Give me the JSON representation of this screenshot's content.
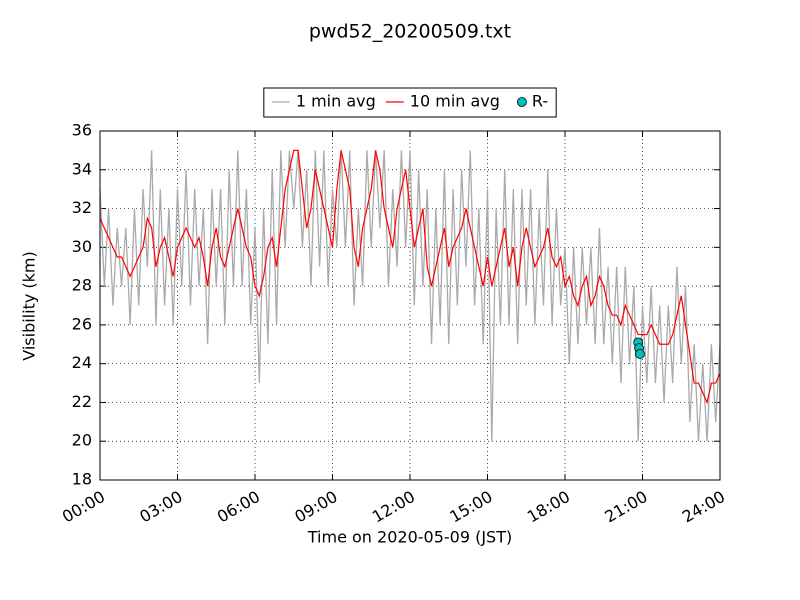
{
  "chart_data": {
    "type": "line",
    "title": "pwd52_20200509.txt",
    "xlabel": "Time on 2020-05-09 (JST)",
    "ylabel": "Visibility (km)",
    "xlim": [
      0,
      1440
    ],
    "xticks": [
      {
        "value": 0,
        "label": "00:00"
      },
      {
        "value": 180,
        "label": "03:00"
      },
      {
        "value": 360,
        "label": "06:00"
      },
      {
        "value": 540,
        "label": "09:00"
      },
      {
        "value": 720,
        "label": "12:00"
      },
      {
        "value": 900,
        "label": "15:00"
      },
      {
        "value": 1080,
        "label": "18:00"
      },
      {
        "value": 1260,
        "label": "21:00"
      },
      {
        "value": 1440,
        "label": "24:00"
      }
    ],
    "ylim": [
      18,
      36
    ],
    "yticks": [
      18,
      20,
      22,
      24,
      26,
      28,
      30,
      32,
      34,
      36
    ],
    "grid": true,
    "legend": "top",
    "x": [
      0,
      10,
      20,
      30,
      40,
      50,
      60,
      70,
      80,
      90,
      100,
      110,
      120,
      130,
      140,
      150,
      160,
      170,
      180,
      190,
      200,
      210,
      220,
      230,
      240,
      250,
      260,
      270,
      280,
      290,
      300,
      310,
      320,
      330,
      340,
      350,
      360,
      370,
      380,
      390,
      400,
      410,
      420,
      430,
      440,
      450,
      460,
      470,
      480,
      490,
      500,
      510,
      520,
      530,
      540,
      550,
      560,
      570,
      580,
      590,
      600,
      610,
      620,
      630,
      640,
      650,
      660,
      670,
      680,
      690,
      700,
      710,
      720,
      730,
      740,
      750,
      760,
      770,
      780,
      790,
      800,
      810,
      820,
      830,
      840,
      850,
      860,
      870,
      880,
      890,
      900,
      910,
      920,
      930,
      940,
      950,
      960,
      970,
      980,
      990,
      1000,
      1010,
      1020,
      1030,
      1040,
      1050,
      1060,
      1070,
      1080,
      1090,
      1100,
      1110,
      1120,
      1130,
      1140,
      1150,
      1160,
      1170,
      1180,
      1190,
      1200,
      1210,
      1220,
      1230,
      1240,
      1250,
      1260,
      1270,
      1280,
      1290,
      1300,
      1310,
      1320,
      1330,
      1340,
      1350,
      1360,
      1370,
      1380,
      1390,
      1400,
      1410,
      1420,
      1430,
      1440
    ],
    "series": [
      {
        "name": "1 min avg",
        "color": "#aaaaaa",
        "values": [
          33,
          28,
          32,
          27,
          31,
          28,
          31,
          26,
          32,
          27,
          33,
          29,
          35,
          26,
          33,
          27,
          32,
          26,
          33,
          28,
          34,
          27,
          33,
          28,
          32,
          25,
          33,
          28,
          33,
          26,
          34,
          28,
          35,
          28,
          33,
          26,
          31,
          23,
          32,
          25,
          34,
          26,
          35,
          30,
          35,
          32,
          35,
          30,
          34,
          28,
          35,
          29,
          35,
          28,
          33,
          30,
          35,
          30,
          35,
          27,
          32,
          28,
          35,
          30,
          35,
          31,
          35,
          28,
          33,
          29,
          35,
          30,
          35,
          27,
          34,
          28,
          33,
          25,
          32,
          26,
          34,
          25,
          33,
          27,
          34,
          29,
          35,
          27,
          32,
          25,
          33,
          20,
          32,
          26,
          34,
          26,
          33,
          25,
          33,
          27,
          33,
          26,
          32,
          27,
          34,
          26,
          32,
          27,
          30,
          24,
          30,
          25,
          30,
          26,
          30,
          25,
          31,
          25,
          29,
          24,
          29,
          23,
          29,
          24,
          28,
          20,
          27,
          23,
          28,
          23,
          27,
          22,
          27,
          23,
          29,
          24,
          28,
          21,
          25,
          20,
          24,
          20,
          25,
          21,
          25
        ]
      },
      {
        "name": "10 min avg",
        "color": "#ff0000",
        "values": [
          31.5,
          31,
          30.5,
          30,
          29.5,
          29.5,
          29,
          28.5,
          29,
          29.5,
          30,
          31.5,
          31,
          29,
          30,
          30.5,
          29.5,
          28.5,
          30,
          30.5,
          31,
          30.5,
          30,
          30.5,
          29.5,
          28,
          30,
          31,
          29.5,
          29,
          30,
          31,
          32,
          31,
          30,
          29.5,
          28,
          27.5,
          28.5,
          30,
          30.5,
          29,
          31,
          33,
          34,
          35,
          35,
          33,
          31,
          32,
          34,
          33,
          32,
          31,
          30,
          33,
          35,
          34,
          33,
          30,
          29,
          31,
          32,
          33,
          35,
          34,
          32,
          31,
          30,
          32,
          33,
          34,
          32,
          30,
          31,
          32,
          29,
          28,
          29,
          30,
          31,
          29,
          30,
          30.5,
          31,
          32,
          31,
          30,
          29,
          28,
          29.5,
          28,
          29,
          30,
          31,
          29,
          30,
          28,
          30,
          31,
          30,
          29,
          29.5,
          30,
          31,
          29.5,
          29,
          29.5,
          28,
          28.5,
          27.5,
          27,
          28,
          28.5,
          27,
          27.5,
          28.5,
          28,
          27,
          26.5,
          26.5,
          26,
          27,
          26.5,
          26,
          25.5,
          25.5,
          25.5,
          26,
          25.5,
          25,
          25,
          25,
          25.5,
          26.5,
          27.5,
          26,
          24.5,
          23,
          23,
          22.5,
          22,
          23,
          23,
          23.5
        ]
      },
      {
        "name": "R-",
        "type": "scatter",
        "color": "#00bfbf",
        "x": [
          1250,
          1252,
          1254
        ],
        "values": [
          25.1,
          24.8,
          24.5
        ]
      }
    ]
  }
}
